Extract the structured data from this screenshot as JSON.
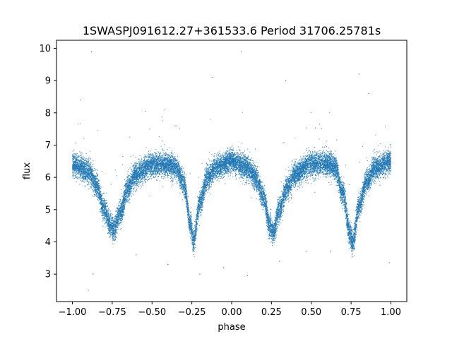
{
  "chart_data": {
    "type": "scatter",
    "title": "1SWASPJ091612.27+361533.6 Period 31706.25781s",
    "xlabel": "phase",
    "ylabel": "flux",
    "xlim": [
      -1.1,
      1.1
    ],
    "ylim": [
      2.15,
      10.25
    ],
    "x_ticks": [
      -1.0,
      -0.75,
      -0.5,
      -0.25,
      0.0,
      0.25,
      0.5,
      0.75,
      1.0
    ],
    "x_tick_labels": [
      "−1.00",
      "−0.75",
      "−0.50",
      "−0.25",
      "0.00",
      "0.25",
      "0.50",
      "0.75",
      "1.00"
    ],
    "y_ticks": [
      3,
      4,
      5,
      6,
      7,
      8,
      9,
      10
    ],
    "y_tick_labels": [
      "3",
      "4",
      "5",
      "6",
      "7",
      "8",
      "9",
      "10"
    ],
    "grid": false,
    "legend": "none",
    "marker_color": "#1f77b4",
    "series": [
      {
        "trend_x": [
          -1.0,
          -0.9,
          -0.85,
          -0.8,
          -0.76,
          -0.74,
          -0.7,
          -0.65,
          -0.6,
          -0.5,
          -0.4,
          -0.35,
          -0.3,
          -0.26,
          -0.24,
          -0.2,
          -0.15,
          -0.1,
          0.0,
          0.1,
          0.15,
          0.2,
          0.24,
          0.26,
          0.3,
          0.35,
          0.4,
          0.5,
          0.6,
          0.65,
          0.7,
          0.74,
          0.76,
          0.8,
          0.85,
          0.9,
          1.0
        ],
        "trend_y": [
          6.4,
          6.2,
          5.8,
          5.0,
          4.5,
          4.4,
          4.9,
          5.7,
          6.1,
          6.4,
          6.4,
          6.3,
          5.8,
          4.6,
          4.0,
          5.2,
          6.0,
          6.3,
          6.5,
          6.3,
          6.0,
          5.4,
          4.5,
          4.3,
          5.0,
          5.7,
          6.1,
          6.4,
          6.45,
          6.3,
          5.5,
          4.3,
          3.95,
          5.1,
          5.9,
          6.3,
          6.5
        ],
        "scatter_sigma": 0.18,
        "points_per_unit_phase": 9000
      }
    ],
    "outliers": [
      [
        -0.95,
        8.4
      ],
      [
        -0.88,
        9.9
      ],
      [
        -0.9,
        2.5
      ],
      [
        -0.87,
        3.0
      ],
      [
        -0.12,
        9.1
      ],
      [
        0.06,
        9.9
      ],
      [
        0.1,
        2.95
      ],
      [
        0.34,
        9.0
      ],
      [
        0.8,
        9.2
      ],
      [
        0.86,
        8.6
      ],
      [
        -0.6,
        3.6
      ],
      [
        0.62,
        3.7
      ],
      [
        -0.2,
        3.0
      ],
      [
        0.3,
        3.4
      ],
      [
        0.99,
        3.35
      ],
      [
        -0.05,
        3.2
      ],
      [
        -0.4,
        3.3
      ],
      [
        0.47,
        3.7
      ]
    ]
  }
}
